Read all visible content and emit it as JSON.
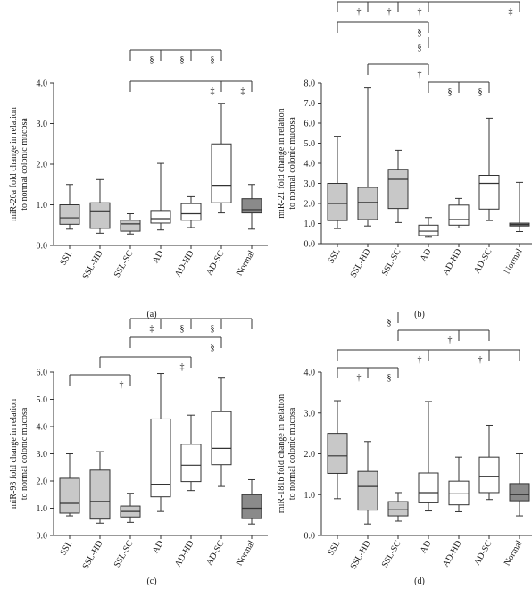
{
  "colors": {
    "ssl_fill": "#c8c8c8",
    "open_fill": "#ffffff",
    "normal_fill": "#8a8a8a",
    "stroke": "#333333"
  },
  "chart_data": [
    {
      "panel": "(a)",
      "type": "box",
      "ylabel": "miR-20a fold change in relation to normal colonic mucosa",
      "ylim": [
        0,
        4.0
      ],
      "yticks": [
        "0.0",
        "1.0",
        "2.0",
        "3.0",
        "4.0"
      ],
      "categories": [
        "SSL",
        "SSL-HD",
        "SSL-SC",
        "AD",
        "AD-HD",
        "AD-SC",
        "Normal"
      ],
      "boxes": [
        {
          "min": 0.4,
          "q1": 0.52,
          "median": 0.68,
          "q3": 1.0,
          "max": 1.5
        },
        {
          "min": 0.3,
          "q1": 0.42,
          "median": 0.85,
          "q3": 1.05,
          "max": 1.62
        },
        {
          "min": 0.28,
          "q1": 0.35,
          "median": 0.53,
          "q3": 0.62,
          "max": 0.78
        },
        {
          "min": 0.38,
          "q1": 0.55,
          "median": 0.66,
          "q3": 0.86,
          "max": 2.02
        },
        {
          "min": 0.44,
          "q1": 0.62,
          "median": 0.78,
          "q3": 1.03,
          "max": 1.2
        },
        {
          "min": 0.8,
          "q1": 1.05,
          "median": 1.48,
          "q3": 2.5,
          "max": 3.5
        },
        {
          "min": 0.4,
          "q1": 0.8,
          "median": 0.88,
          "q3": 1.15,
          "max": 1.5
        }
      ],
      "brackets": [
        {
          "from": 2,
          "to": [
            3,
            4,
            5
          ],
          "symbols": [
            "§",
            "§",
            "§"
          ],
          "level": 0
        },
        {
          "from": 2,
          "to": [
            5,
            6
          ],
          "symbols": [
            "‡",
            "‡"
          ],
          "level": 1
        }
      ]
    },
    {
      "panel": "(b)",
      "type": "box",
      "ylabel": "miR-21 fold change in relation to normal colonic mucosa",
      "ylim": [
        0,
        8.0
      ],
      "yticks": [
        "0.0",
        "1.0",
        "2.0",
        "3.0",
        "4.0",
        "5.0",
        "6.0",
        "7.0",
        "8.0"
      ],
      "categories": [
        "SSL",
        "SSL-HD",
        "SSL-SC",
        "AD",
        "AD-HD",
        "AD-SC",
        "Normal"
      ],
      "boxes": [
        {
          "min": 0.75,
          "q1": 1.15,
          "median": 2.0,
          "q3": 3.0,
          "max": 5.35
        },
        {
          "min": 0.88,
          "q1": 1.2,
          "median": 2.05,
          "q3": 2.8,
          "max": 7.75
        },
        {
          "min": 1.05,
          "q1": 1.75,
          "median": 3.2,
          "q3": 3.7,
          "max": 4.65
        },
        {
          "min": 0.32,
          "q1": 0.4,
          "median": 0.62,
          "q3": 0.92,
          "max": 1.3
        },
        {
          "min": 0.78,
          "q1": 0.92,
          "median": 1.2,
          "q3": 1.92,
          "max": 2.25
        },
        {
          "min": 1.15,
          "q1": 1.72,
          "median": 3.0,
          "q3": 3.4,
          "max": 6.25
        },
        {
          "min": 0.6,
          "q1": 0.88,
          "median": 0.95,
          "q3": 1.02,
          "max": 3.05
        }
      ],
      "brackets": [
        {
          "from": 3,
          "to": [
            4,
            5
          ],
          "symbols": [
            "§",
            "§"
          ],
          "level": 0
        },
        {
          "from": 1,
          "to": [
            3
          ],
          "symbols": [
            "†"
          ],
          "level": 1
        },
        {
          "from": 3,
          "to": [
            3
          ],
          "symbols": [
            "§"
          ],
          "level": 2
        },
        {
          "from": 0,
          "to": [
            3
          ],
          "symbols": [
            "§"
          ],
          "level": 3
        },
        {
          "from": 0,
          "to": [
            1,
            2,
            3,
            6
          ],
          "symbols": [
            "†",
            "†",
            "†",
            "‡"
          ],
          "level": 4
        }
      ]
    },
    {
      "panel": "(c)",
      "type": "box",
      "ylabel": "miR-93 fold change in relation to normal colonic mucosa",
      "ylim": [
        0,
        6.0
      ],
      "yticks": [
        "0.0",
        "1.0",
        "2.0",
        "3.0",
        "4.0",
        "5.0",
        "6.0"
      ],
      "categories": [
        "SSL",
        "SSL-HD",
        "SSL-SC",
        "AD",
        "AD-HD",
        "AD-SC",
        "Normal"
      ],
      "boxes": [
        {
          "min": 0.72,
          "q1": 0.82,
          "median": 1.18,
          "q3": 2.1,
          "max": 3.0
        },
        {
          "min": 0.45,
          "q1": 0.6,
          "median": 1.25,
          "q3": 2.4,
          "max": 3.08
        },
        {
          "min": 0.48,
          "q1": 0.68,
          "median": 0.88,
          "q3": 1.08,
          "max": 1.55
        },
        {
          "min": 0.88,
          "q1": 1.42,
          "median": 1.88,
          "q3": 4.28,
          "max": 5.95
        },
        {
          "min": 1.65,
          "q1": 1.98,
          "median": 2.58,
          "q3": 3.35,
          "max": 4.42
        },
        {
          "min": 1.8,
          "q1": 2.6,
          "median": 3.2,
          "q3": 4.55,
          "max": 5.78
        },
        {
          "min": 0.42,
          "q1": 0.62,
          "median": 1.0,
          "q3": 1.5,
          "max": 2.05
        }
      ],
      "brackets": [
        {
          "from": 0,
          "to": [
            2
          ],
          "symbols": [
            "†"
          ],
          "level": 0
        },
        {
          "from": 1,
          "to": [
            4
          ],
          "symbols": [
            "‡"
          ],
          "level": 1
        },
        {
          "from": 2,
          "to": [
            5
          ],
          "symbols": [
            "§"
          ],
          "level": 2
        },
        {
          "from": 3,
          "to": [
            4,
            5,
            6
          ],
          "symbols": [
            "§",
            "§",
            ""
          ],
          "level": 3
        },
        {
          "from": 2,
          "to": [
            3
          ],
          "symbols": [
            "‡"
          ],
          "level": 3
        }
      ]
    },
    {
      "panel": "(d)",
      "type": "box",
      "ylabel": "miR-181b fold change in relation to normal colonic mucosa",
      "ylim": [
        0,
        4.0
      ],
      "yticks": [
        "0.0",
        "1.0",
        "2.0",
        "3.0",
        "4.0"
      ],
      "categories": [
        "SSL",
        "SSL-HD",
        "SSL-SC",
        "AD",
        "AD-HD",
        "AD-SC",
        "Normal"
      ],
      "boxes": [
        {
          "min": 0.9,
          "q1": 1.52,
          "median": 1.95,
          "q3": 2.5,
          "max": 3.3
        },
        {
          "min": 0.28,
          "q1": 0.62,
          "median": 1.2,
          "q3": 1.57,
          "max": 2.3
        },
        {
          "min": 0.35,
          "q1": 0.48,
          "median": 0.63,
          "q3": 0.83,
          "max": 1.05
        },
        {
          "min": 0.6,
          "q1": 0.8,
          "median": 1.05,
          "q3": 1.53,
          "max": 3.28
        },
        {
          "min": 0.58,
          "q1": 0.75,
          "median": 1.02,
          "q3": 1.33,
          "max": 1.92
        },
        {
          "min": 0.88,
          "q1": 1.05,
          "median": 1.45,
          "q3": 1.92,
          "max": 2.7
        },
        {
          "min": 0.48,
          "q1": 0.85,
          "median": 1.0,
          "q3": 1.27,
          "max": 2.0
        }
      ],
      "brackets": [
        {
          "from": 0,
          "to": [
            1,
            2
          ],
          "symbols": [
            "†",
            "§"
          ],
          "level": 0
        },
        {
          "from": 0,
          "to": [
            3,
            5,
            6
          ],
          "symbols": [
            "†",
            "†",
            ""
          ],
          "level": 1
        },
        {
          "from": 2,
          "to": [
            4,
            5
          ],
          "symbols": [
            "†",
            ""
          ],
          "level": 2
        },
        {
          "from": 2,
          "to": [
            2
          ],
          "symbols": [
            "§"
          ],
          "level": 3
        }
      ]
    }
  ]
}
